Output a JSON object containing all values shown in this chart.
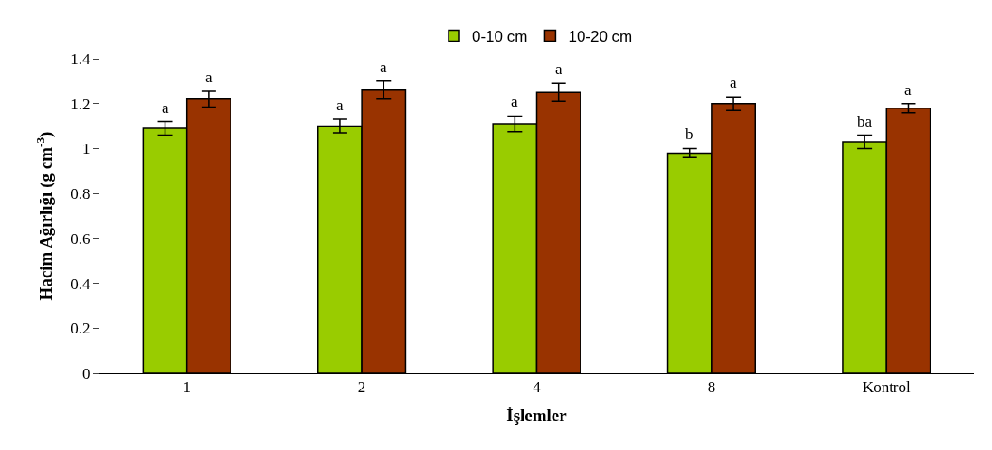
{
  "chart_data": {
    "type": "bar",
    "xlabel": "İşlemler",
    "ylabel": "Hacim Ağırlığı (g cm$^{-3}$)",
    "categories": [
      "1",
      "2",
      "4",
      "8",
      "Kontrol"
    ],
    "series": [
      {
        "name": "0-10 cm",
        "color": "#99cc00",
        "values": [
          1.09,
          1.1,
          1.11,
          0.98,
          1.03
        ],
        "errors": [
          0.03,
          0.03,
          0.035,
          0.02,
          0.03
        ],
        "value_labels": [
          "a",
          "a",
          "a",
          "b",
          "ba"
        ]
      },
      {
        "name": "10-20 cm",
        "color": "#993300",
        "values": [
          1.22,
          1.26,
          1.25,
          1.2,
          1.18
        ],
        "errors": [
          0.035,
          0.04,
          0.04,
          0.03,
          0.02
        ],
        "value_labels": [
          "a",
          "a",
          "a",
          "a",
          "a"
        ]
      }
    ],
    "ylim": [
      0,
      1.4
    ],
    "yticks": [
      0,
      0.2,
      0.4,
      0.6,
      0.8,
      1,
      1.2,
      1.4
    ],
    "legend": "top"
  }
}
